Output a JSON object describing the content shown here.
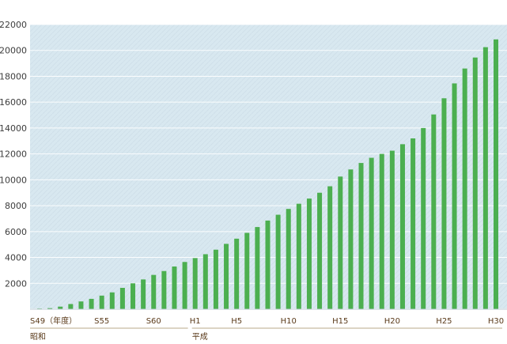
{
  "chart_data": {
    "type": "bar",
    "title": "",
    "xlabel": "",
    "ylabel": "",
    "ylim": [
      0,
      22000
    ],
    "yticks": [
      2000,
      4000,
      6000,
      8000,
      10000,
      12000,
      14000,
      16000,
      18000,
      20000,
      22000
    ],
    "grid": true,
    "bar_color": "#4caf50",
    "plot_background": "#d8e8f0",
    "categories": [
      "S49",
      "S50",
      "S51",
      "S52",
      "S53",
      "S54",
      "S55",
      "S56",
      "S57",
      "S58",
      "S59",
      "S60",
      "S61",
      "S62",
      "S63",
      "H1",
      "H2",
      "H3",
      "H4",
      "H5",
      "H6",
      "H7",
      "H8",
      "H9",
      "H10",
      "H11",
      "H12",
      "H13",
      "H14",
      "H15",
      "H16",
      "H17",
      "H18",
      "H19",
      "H20",
      "H21",
      "H22",
      "H23",
      "H24",
      "H25",
      "H26",
      "H27",
      "H28",
      "H29",
      "H30"
    ],
    "values": [
      50,
      80,
      200,
      400,
      600,
      800,
      1050,
      1300,
      1650,
      2000,
      2300,
      2650,
      2950,
      3300,
      3650,
      3950,
      4250,
      4600,
      5050,
      5450,
      5900,
      6350,
      6850,
      7300,
      7750,
      8150,
      8550,
      9000,
      9500,
      10250,
      10800,
      11300,
      11700,
      12000,
      12250,
      12750,
      13200,
      14000,
      15050,
      16300,
      17450,
      18600,
      19450,
      20250,
      20850
    ],
    "x_tick_labels": [
      {
        "category": "S49",
        "label": "S49（年度）"
      },
      {
        "category": "S55",
        "label": "S55"
      },
      {
        "category": "S60",
        "label": "S60"
      },
      {
        "category": "H1",
        "label": "H1"
      },
      {
        "category": "H5",
        "label": "H5"
      },
      {
        "category": "H10",
        "label": "H10"
      },
      {
        "category": "H15",
        "label": "H15"
      },
      {
        "category": "H20",
        "label": "H20"
      },
      {
        "category": "H25",
        "label": "H25"
      },
      {
        "category": "H30",
        "label": "H30"
      }
    ],
    "eras": [
      {
        "label": "昭和",
        "start": "S49",
        "end": "S63"
      },
      {
        "label": "平成",
        "start": "H1",
        "end": "H30"
      }
    ]
  }
}
